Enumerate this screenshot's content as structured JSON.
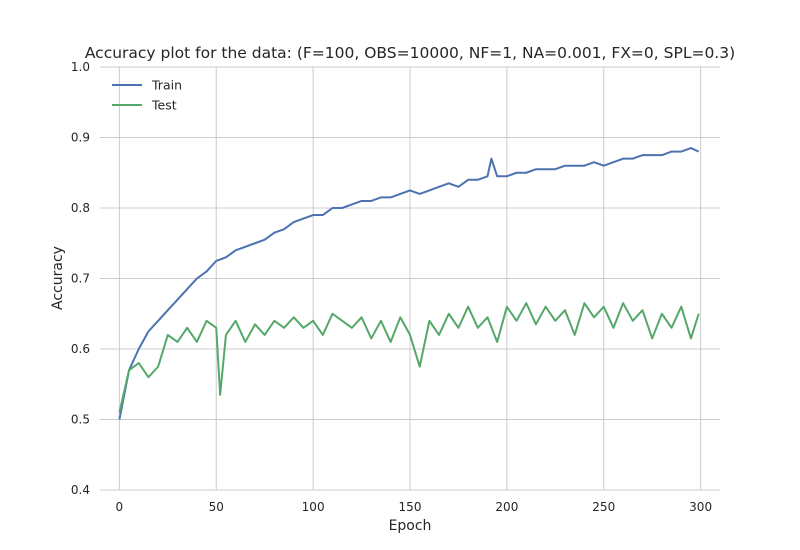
{
  "chart_data": {
    "type": "line",
    "title": "Accuracy plot for the data: (F=100, OBS=10000, NF=1, NA=0.001, FX=0, SPL=0.3)",
    "xlabel": "Epoch",
    "ylabel": "Accuracy",
    "xlim": [
      -10,
      310
    ],
    "ylim": [
      0.4,
      1.0
    ],
    "xticks": [
      0,
      50,
      100,
      150,
      200,
      250,
      300
    ],
    "yticks": [
      0.4,
      0.5,
      0.6,
      0.7,
      0.8,
      0.9,
      1.0
    ],
    "xtick_labels": [
      "0",
      "50",
      "100",
      "150",
      "200",
      "250",
      "300"
    ],
    "ytick_labels": [
      "0.4",
      "0.5",
      "0.6",
      "0.7",
      "0.8",
      "0.9",
      "1.0"
    ],
    "grid": true,
    "legend_position": "top-left",
    "series": [
      {
        "name": "Train",
        "color": "#4c72b0",
        "x": [
          0,
          5,
          10,
          15,
          20,
          25,
          30,
          35,
          40,
          45,
          50,
          55,
          60,
          65,
          70,
          75,
          80,
          85,
          90,
          95,
          100,
          105,
          110,
          115,
          120,
          125,
          130,
          135,
          140,
          145,
          150,
          155,
          160,
          165,
          170,
          175,
          180,
          185,
          190,
          192,
          195,
          200,
          205,
          210,
          215,
          220,
          225,
          230,
          235,
          240,
          245,
          250,
          255,
          260,
          265,
          270,
          275,
          280,
          285,
          290,
          295,
          299
        ],
        "y": [
          0.5,
          0.57,
          0.6,
          0.625,
          0.64,
          0.655,
          0.67,
          0.685,
          0.7,
          0.71,
          0.725,
          0.73,
          0.74,
          0.745,
          0.75,
          0.755,
          0.765,
          0.77,
          0.78,
          0.785,
          0.79,
          0.79,
          0.8,
          0.8,
          0.805,
          0.81,
          0.81,
          0.815,
          0.815,
          0.82,
          0.825,
          0.82,
          0.825,
          0.83,
          0.835,
          0.83,
          0.84,
          0.84,
          0.845,
          0.87,
          0.845,
          0.845,
          0.85,
          0.85,
          0.855,
          0.855,
          0.855,
          0.86,
          0.86,
          0.86,
          0.865,
          0.86,
          0.865,
          0.87,
          0.87,
          0.875,
          0.875,
          0.875,
          0.88,
          0.88,
          0.885,
          0.88
        ]
      },
      {
        "name": "Test",
        "color": "#55a868",
        "x": [
          0,
          5,
          10,
          15,
          20,
          25,
          30,
          35,
          40,
          45,
          50,
          52,
          55,
          60,
          65,
          70,
          75,
          80,
          85,
          90,
          95,
          100,
          105,
          110,
          115,
          120,
          125,
          130,
          135,
          140,
          145,
          150,
          155,
          160,
          165,
          170,
          175,
          180,
          185,
          190,
          195,
          200,
          205,
          210,
          215,
          220,
          225,
          230,
          235,
          240,
          245,
          250,
          255,
          260,
          265,
          270,
          275,
          280,
          285,
          290,
          295,
          299
        ],
        "y": [
          0.51,
          0.57,
          0.58,
          0.56,
          0.575,
          0.62,
          0.61,
          0.63,
          0.61,
          0.64,
          0.63,
          0.535,
          0.62,
          0.64,
          0.61,
          0.635,
          0.62,
          0.64,
          0.63,
          0.645,
          0.63,
          0.64,
          0.62,
          0.65,
          0.64,
          0.63,
          0.645,
          0.615,
          0.64,
          0.61,
          0.645,
          0.62,
          0.575,
          0.64,
          0.62,
          0.65,
          0.63,
          0.66,
          0.63,
          0.645,
          0.61,
          0.66,
          0.64,
          0.665,
          0.635,
          0.66,
          0.64,
          0.655,
          0.62,
          0.665,
          0.645,
          0.66,
          0.63,
          0.665,
          0.64,
          0.655,
          0.615,
          0.65,
          0.63,
          0.66,
          0.615,
          0.65
        ]
      }
    ]
  }
}
